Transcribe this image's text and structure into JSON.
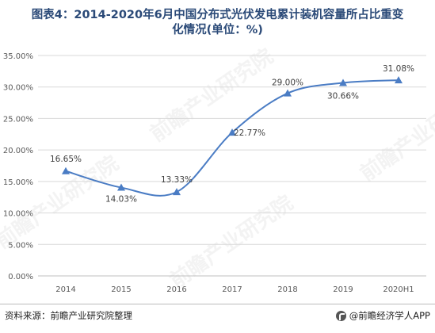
{
  "title_line1": "图表4：2014-2020年6月中国分布式光伏发电累计装机容量所占比重变",
  "title_line2": "化情况(单位：%)",
  "footer": {
    "source": "资料来源：前瞻产业研究院整理",
    "brand": "@前瞻经济学人APP"
  },
  "watermark": "前瞻产业研究院",
  "colors": {
    "line": "#4a7cc4",
    "marker": "#4a7cc4",
    "title": "#2b4a78",
    "grid": "#d9d9d9"
  },
  "chart_data": {
    "type": "line",
    "categories": [
      "2014",
      "2015",
      "2016",
      "2017",
      "2018",
      "2019",
      "2020H1"
    ],
    "series": [
      {
        "values": [
          16.65,
          14.03,
          13.33,
          22.77,
          29.0,
          30.66,
          31.08
        ]
      }
    ],
    "data_labels": [
      "16.65%",
      "14.03%",
      "13.33%",
      "22.77%",
      "29.00%",
      "30.66%",
      "31.08%"
    ],
    "y_ticks": [
      "0.00%",
      "5.00%",
      "10.00%",
      "15.00%",
      "20.00%",
      "25.00%",
      "30.00%",
      "35.00%"
    ],
    "ylim": [
      0,
      35
    ],
    "grid": true,
    "legend": "none",
    "marker": "triangle"
  }
}
